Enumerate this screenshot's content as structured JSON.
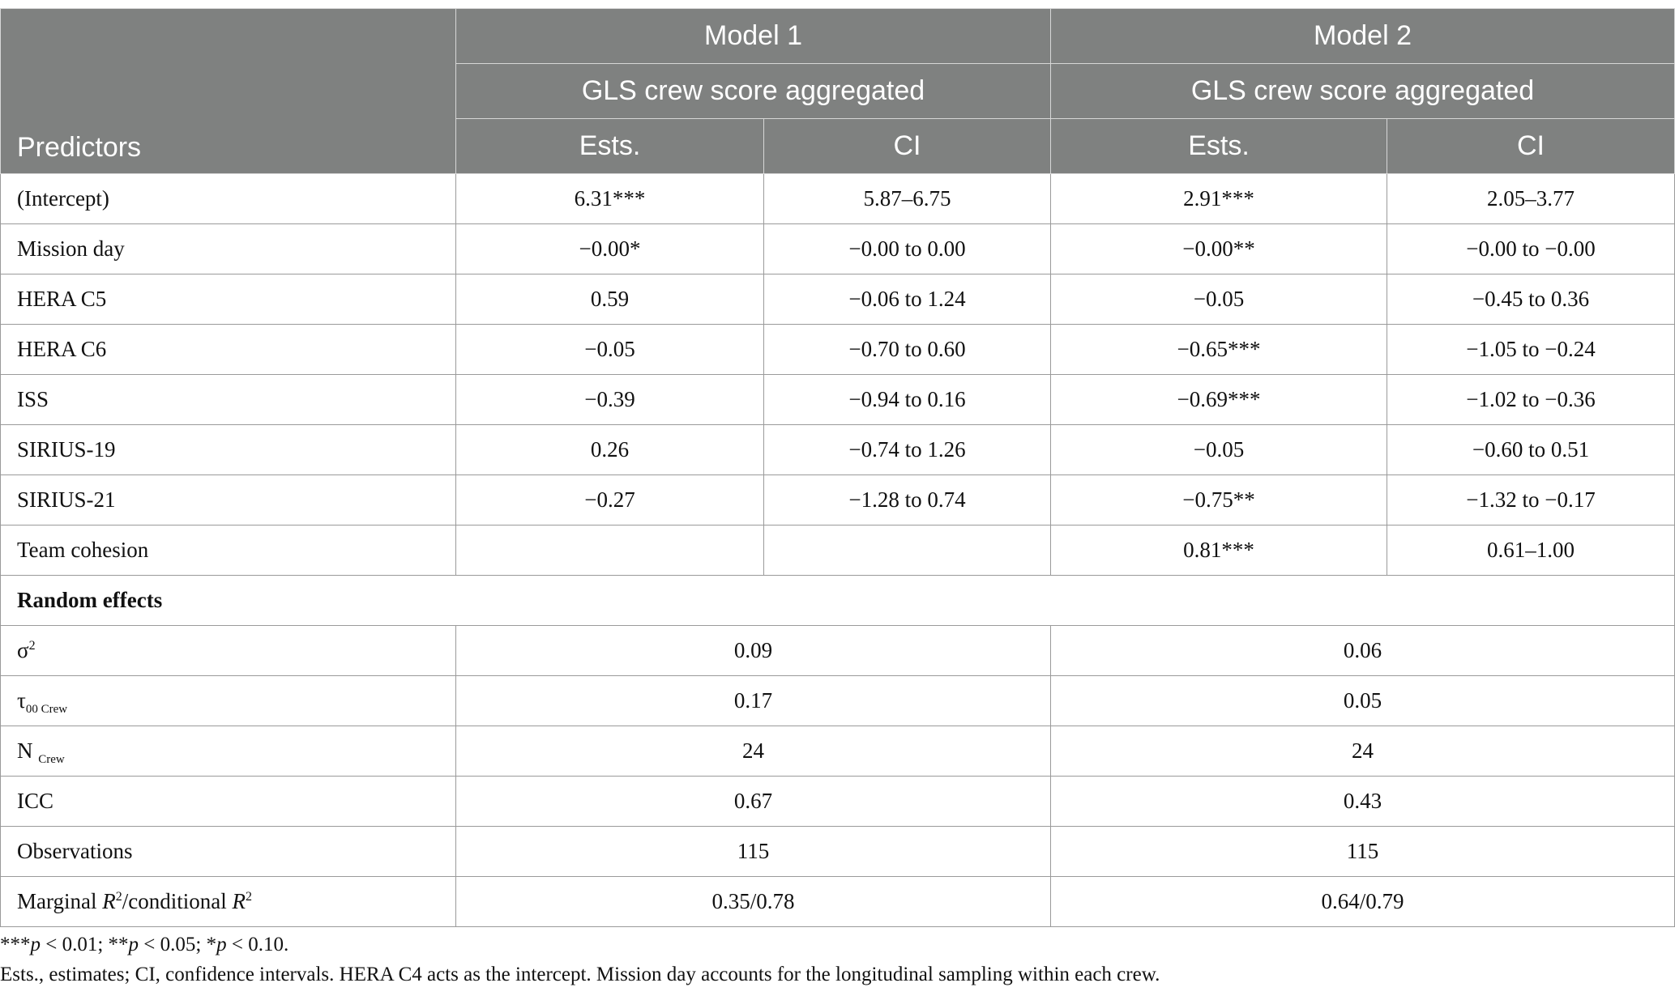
{
  "header": {
    "predictors": "Predictors",
    "model1": "Model 1",
    "model2": "Model 2",
    "dv1": "GLS crew score aggregated",
    "dv2": "GLS crew score aggregated",
    "ests1": "Ests.",
    "ci1": "CI",
    "ests2": "Ests.",
    "ci2": "CI"
  },
  "rows": [
    {
      "label": "(Intercept)",
      "m1_est": "6.31***",
      "m1_ci": "5.87–6.75",
      "m2_est": "2.91***",
      "m2_ci": "2.05–3.77"
    },
    {
      "label": "Mission day",
      "m1_est": "−0.00*",
      "m1_ci": "−0.00 to 0.00",
      "m2_est": "−0.00**",
      "m2_ci": "−0.00 to −0.00"
    },
    {
      "label": "HERA C5",
      "m1_est": "0.59",
      "m1_ci": "−0.06 to 1.24",
      "m2_est": "−0.05",
      "m2_ci": "−0.45 to 0.36"
    },
    {
      "label": "HERA C6",
      "m1_est": "−0.05",
      "m1_ci": "−0.70 to 0.60",
      "m2_est": "−0.65***",
      "m2_ci": "−1.05 to −0.24"
    },
    {
      "label": "ISS",
      "m1_est": "−0.39",
      "m1_ci": "−0.94 to 0.16",
      "m2_est": "−0.69***",
      "m2_ci": "−1.02 to −0.36"
    },
    {
      "label": "SIRIUS-19",
      "m1_est": "0.26",
      "m1_ci": "−0.74 to 1.26",
      "m2_est": "−0.05",
      "m2_ci": "−0.60 to 0.51"
    },
    {
      "label": "SIRIUS-21",
      "m1_est": "−0.27",
      "m1_ci": "−1.28 to 0.74",
      "m2_est": "−0.75**",
      "m2_ci": "−1.32 to −0.17"
    },
    {
      "label": "Team cohesion",
      "m1_est": "",
      "m1_ci": "",
      "m2_est": "0.81***",
      "m2_ci": "0.61–1.00"
    }
  ],
  "random_effects": {
    "heading": "Random effects",
    "sigma2": {
      "label": "σ",
      "sup": "2",
      "m1": "0.09",
      "m2": "0.06"
    },
    "tau00": {
      "label": "τ",
      "sub": "00 Crew",
      "m1": "0.17",
      "m2": "0.05"
    },
    "n_crew": {
      "label": "N ",
      "sub": "Crew",
      "m1": "24",
      "m2": "24"
    },
    "icc": {
      "label": "ICC",
      "m1": "0.67",
      "m2": "0.43"
    },
    "observations": {
      "label": "Observations",
      "m1": "115",
      "m2": "115"
    },
    "r2": {
      "label_a": "Marginal ",
      "r": "R",
      "sup": "2",
      "label_b": "/conditional ",
      "m1": "0.35/0.78",
      "m2": "0.64/0.79"
    }
  },
  "notes": {
    "sig_a": "***",
    "p": "p",
    "sig_a_val": " < 0.01; ",
    "sig_b": "**",
    "sig_b_val": " < 0.05; ",
    "sig_c": "*",
    "sig_c_val": " < 0.10.",
    "line2": "Ests., estimates; CI, confidence intervals. HERA C4 acts as the intercept. Mission day accounts for the longitudinal sampling within each crew."
  }
}
